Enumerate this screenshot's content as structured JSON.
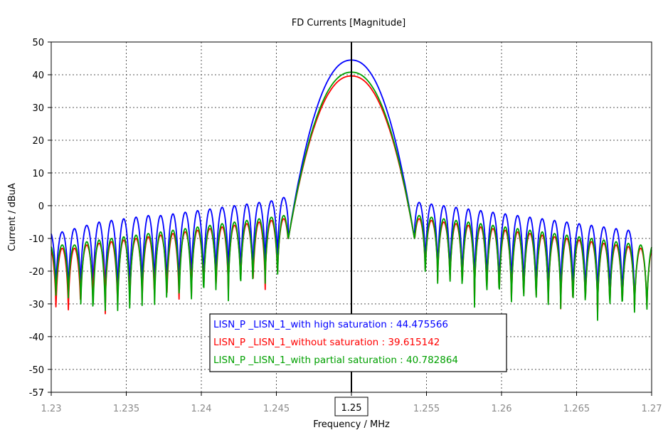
{
  "chart_data": {
    "type": "line",
    "title": "FD Currents [Magnitude]",
    "xlabel": "Frequency / MHz",
    "ylabel": "Current / dBuA",
    "xlim": [
      1.23,
      1.27
    ],
    "ylim": [
      -57,
      50
    ],
    "xticks": [
      "1.23",
      "1.235",
      "1.24",
      "1.245",
      "1.25",
      "1.255",
      "1.26",
      "1.265",
      "1.27"
    ],
    "yticks": [
      "50",
      "40",
      "30",
      "20",
      "10",
      "0",
      "-10",
      "-20",
      "-30",
      "-40",
      "-50",
      "-57"
    ],
    "cursor_x": 1.25,
    "cursor_label": "1.25",
    "grid": true,
    "legend_position": "bottom-center",
    "series": [
      {
        "name": "LISN_P _LISN_1_with high saturation",
        "cursor_value": "44.475566",
        "color": "#0000ff",
        "peak": 44.48,
        "lobe_peaks": [
          -8,
          -7,
          -6,
          -5,
          -4.5,
          -4,
          -3.5,
          -3,
          -3,
          -2.5,
          -2,
          -1.5,
          -1,
          -0.5,
          0,
          0.5,
          1,
          1.5,
          2.5,
          null,
          null,
          null,
          null,
          null,
          null,
          null,
          null,
          2,
          1.5,
          1,
          0.5,
          0,
          -0.5,
          -1,
          -1.5,
          -2,
          -2.5,
          -3,
          -3.5,
          -4,
          -4.5,
          -5,
          -5.5,
          -6,
          -6.5,
          -7,
          -7.5,
          -8
        ],
        "lobe_nulls": [
          -28,
          -30,
          -26,
          -32,
          -30,
          -31,
          -28,
          -29,
          -27,
          -30,
          -25,
          -27,
          -26,
          -24,
          -23,
          -26,
          -22,
          -20,
          -18,
          null,
          null,
          null,
          null,
          null,
          null,
          null,
          null,
          -17,
          -19,
          -20,
          -22,
          -24,
          -25,
          -27,
          -26,
          -28,
          -29,
          -27,
          -30,
          -28,
          -31,
          -29,
          -30,
          -32,
          -30,
          -31,
          -32
        ]
      },
      {
        "name": "LISN_P _LISN_1_without saturation",
        "cursor_value": "39.615142",
        "color": "#ff0000",
        "peak": 39.62,
        "lobe_peaks": [
          -13,
          -12,
          -11.5,
          -11,
          -10.5,
          -10,
          -9.5,
          -9,
          -8.5,
          -8,
          -7.5,
          -7,
          -6.5,
          -6,
          -5.5,
          -5,
          -4.5,
          -4,
          -3,
          null,
          null,
          null,
          null,
          null,
          null,
          null,
          null,
          -3.5,
          -4,
          -4.5,
          -5,
          -5.5,
          -6,
          -6.5,
          -7,
          -7.5,
          -8,
          -8.5,
          -9,
          -9.5,
          -10,
          -10.5,
          -11,
          -11.5,
          -12,
          -12.5,
          -13
        ],
        "lobe_nulls": [
          -34,
          -32,
          -30,
          -33,
          -34,
          -31,
          -32,
          -30,
          -32,
          -29,
          -30,
          -28,
          -29,
          -27,
          -26,
          -28,
          -25,
          -23,
          -21,
          null,
          null,
          null,
          null,
          null,
          null,
          null,
          null,
          -20,
          -22,
          -23,
          -25,
          -27,
          -28,
          -30,
          -29,
          -31,
          -32,
          -30,
          -33,
          -31,
          -34,
          -32,
          -33,
          -34,
          -33,
          -34,
          -34
        ]
      },
      {
        "name": "LISN_P _LISN_1_with partial saturation",
        "cursor_value": "40.782864",
        "color": "#00a000",
        "peak": 40.78,
        "lobe_peaks": [
          -12,
          -11,
          -10.5,
          -10,
          -9.5,
          -9,
          -8.5,
          -8,
          -7.5,
          -7,
          -6.5,
          -6,
          -5.5,
          -5,
          -4.5,
          -4,
          -3.5,
          -3,
          -2,
          null,
          null,
          null,
          null,
          null,
          null,
          null,
          null,
          -2.5,
          -3,
          -3.5,
          -4,
          -4.5,
          -5,
          -5.5,
          -6,
          -6.5,
          -7,
          -7.5,
          -8,
          -8.5,
          -9,
          -9.5,
          -10,
          -10.5,
          -11,
          -11.5,
          -12
        ],
        "lobe_nulls": [
          -30,
          -35,
          -37,
          -32,
          -37,
          -33,
          -31,
          -34,
          -30,
          -33,
          -31,
          -30,
          -28,
          -29,
          -27,
          -26,
          -25,
          -24,
          -22,
          null,
          null,
          null,
          null,
          null,
          null,
          null,
          null,
          -21,
          -23,
          -24,
          -26,
          -28,
          -29,
          -31,
          -30,
          -32,
          -33,
          -31,
          -34,
          -32,
          -34,
          -33,
          -34,
          -35,
          -34,
          -35,
          -35
        ]
      }
    ]
  }
}
